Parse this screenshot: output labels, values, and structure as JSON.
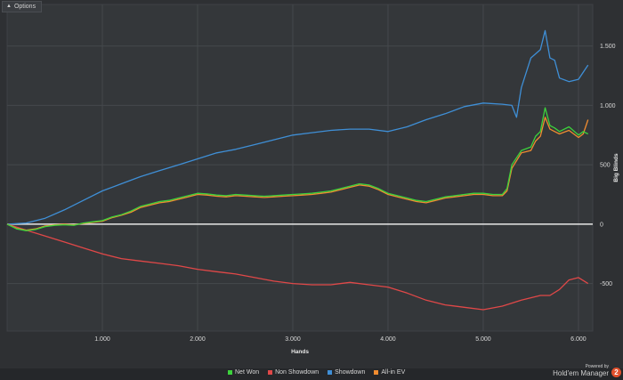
{
  "chart_data": {
    "type": "line",
    "xlabel": "Hands",
    "ylabel": "Big Blinds",
    "xlim": [
      0,
      6150
    ],
    "ylim": [
      -900,
      1850
    ],
    "x_ticks": [
      1000,
      2000,
      3000,
      4000,
      5000,
      6000
    ],
    "x_tick_labels": [
      "1.000",
      "2.000",
      "3.000",
      "4.000",
      "5.000",
      "6.000"
    ],
    "y_ticks": [
      -500,
      0,
      500,
      1000,
      1500
    ],
    "y_tick_labels": [
      "-500",
      "0",
      "500",
      "1.000",
      "1.500"
    ],
    "grid": true,
    "legend": "bottom",
    "series": [
      {
        "name": "Net Won",
        "color": "#3cd23c",
        "x": [
          0,
          100,
          200,
          300,
          400,
          500,
          600,
          700,
          800,
          900,
          1000,
          1100,
          1200,
          1300,
          1400,
          1500,
          1600,
          1700,
          1800,
          1900,
          2000,
          2100,
          2200,
          2300,
          2400,
          2500,
          2600,
          2700,
          2800,
          2900,
          3000,
          3100,
          3200,
          3300,
          3400,
          3500,
          3600,
          3700,
          3800,
          3900,
          4000,
          4100,
          4200,
          4300,
          4400,
          4500,
          4600,
          4700,
          4800,
          4900,
          5000,
          5100,
          5200,
          5250,
          5300,
          5400,
          5500,
          5550,
          5600,
          5650,
          5700,
          5750,
          5800,
          5900,
          6000,
          6050,
          6100
        ],
        "y": [
          0,
          -40,
          -55,
          -45,
          -20,
          -10,
          -5,
          -10,
          10,
          20,
          30,
          60,
          80,
          110,
          150,
          170,
          190,
          200,
          220,
          240,
          260,
          255,
          245,
          240,
          250,
          245,
          240,
          235,
          240,
          245,
          250,
          255,
          260,
          270,
          280,
          300,
          320,
          340,
          330,
          300,
          260,
          240,
          220,
          200,
          190,
          210,
          230,
          240,
          250,
          260,
          260,
          250,
          250,
          300,
          500,
          620,
          650,
          740,
          780,
          980,
          830,
          810,
          780,
          820,
          750,
          780,
          760
        ]
      },
      {
        "name": "Non Showdown",
        "color": "#e04848",
        "x": [
          0,
          200,
          400,
          600,
          800,
          1000,
          1200,
          1400,
          1600,
          1800,
          2000,
          2200,
          2400,
          2600,
          2800,
          3000,
          3200,
          3400,
          3600,
          3800,
          4000,
          4200,
          4400,
          4600,
          4800,
          5000,
          5200,
          5400,
          5600,
          5700,
          5800,
          5900,
          6000,
          6100
        ],
        "y": [
          0,
          -50,
          -100,
          -150,
          -200,
          -250,
          -290,
          -310,
          -330,
          -350,
          -380,
          -400,
          -420,
          -450,
          -480,
          -500,
          -510,
          -510,
          -490,
          -510,
          -530,
          -580,
          -640,
          -680,
          -700,
          -720,
          -690,
          -640,
          -600,
          -600,
          -550,
          -470,
          -450,
          -500
        ]
      },
      {
        "name": "Showdown",
        "color": "#3f8fd6",
        "x": [
          0,
          200,
          400,
          600,
          800,
          1000,
          1200,
          1400,
          1600,
          1800,
          2000,
          2200,
          2400,
          2600,
          2800,
          3000,
          3200,
          3400,
          3600,
          3800,
          4000,
          4200,
          4400,
          4600,
          4800,
          5000,
          5200,
          5300,
          5350,
          5400,
          5500,
          5600,
          5650,
          5700,
          5750,
          5800,
          5900,
          6000,
          6100
        ],
        "y": [
          0,
          10,
          50,
          120,
          200,
          280,
          340,
          400,
          450,
          500,
          550,
          600,
          630,
          670,
          710,
          750,
          770,
          790,
          800,
          800,
          780,
          820,
          880,
          930,
          990,
          1020,
          1010,
          1000,
          900,
          1150,
          1400,
          1470,
          1630,
          1400,
          1380,
          1230,
          1200,
          1220,
          1340
        ]
      },
      {
        "name": "All-in EV",
        "color": "#f08c30",
        "x": [
          0,
          100,
          200,
          300,
          400,
          500,
          600,
          700,
          800,
          900,
          1000,
          1100,
          1200,
          1300,
          1400,
          1500,
          1600,
          1700,
          1800,
          1900,
          2000,
          2100,
          2200,
          2300,
          2400,
          2500,
          2600,
          2700,
          2800,
          2900,
          3000,
          3100,
          3200,
          3300,
          3400,
          3500,
          3600,
          3700,
          3800,
          3900,
          4000,
          4100,
          4200,
          4300,
          4400,
          4500,
          4600,
          4700,
          4800,
          4900,
          5000,
          5100,
          5200,
          5250,
          5300,
          5400,
          5500,
          5550,
          5600,
          5650,
          5700,
          5750,
          5800,
          5900,
          6000,
          6050,
          6100
        ],
        "y": [
          0,
          -35,
          -50,
          -40,
          -15,
          -5,
          0,
          -5,
          5,
          15,
          25,
          55,
          75,
          100,
          140,
          160,
          180,
          190,
          210,
          230,
          250,
          245,
          235,
          230,
          240,
          235,
          230,
          225,
          230,
          235,
          240,
          245,
          250,
          260,
          270,
          290,
          310,
          330,
          320,
          290,
          250,
          230,
          210,
          190,
          180,
          200,
          220,
          230,
          240,
          250,
          250,
          240,
          240,
          280,
          470,
          600,
          620,
          700,
          740,
          900,
          800,
          780,
          760,
          790,
          730,
          760,
          880
        ]
      }
    ]
  },
  "ui": {
    "options_label": "Options",
    "brand_powered": "Powered by",
    "brand_name": "Hold'em Manager",
    "brand_logo_text": "2"
  }
}
